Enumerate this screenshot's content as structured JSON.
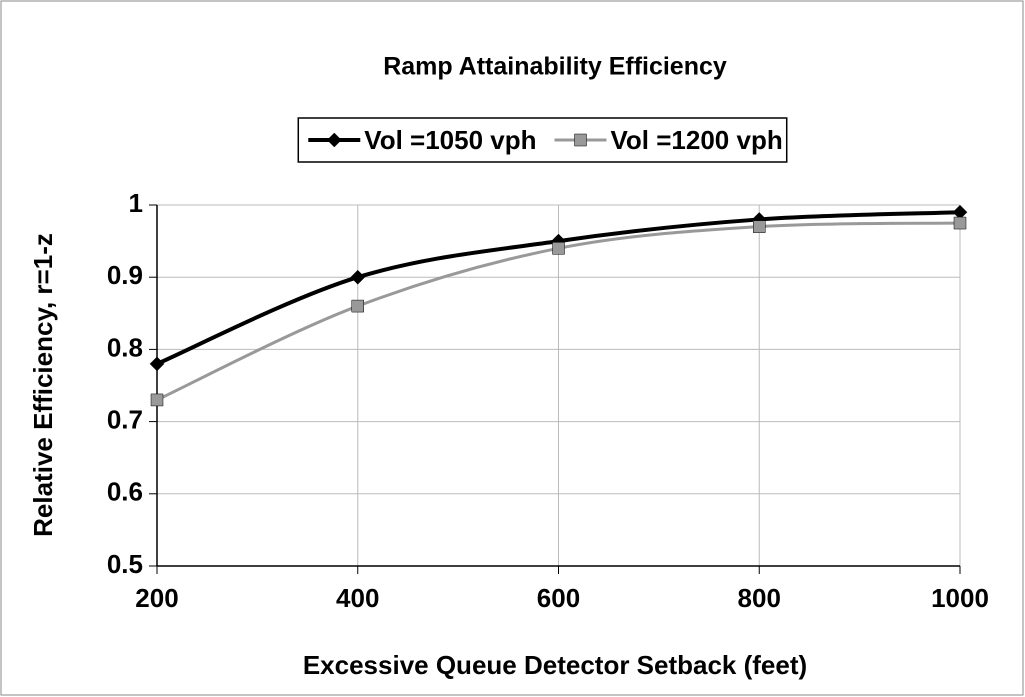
{
  "chart_data": {
    "type": "line",
    "title": "Ramp Attainability Efficiency",
    "x_label": "Excessive Queue Detector Setback (feet)",
    "y_label": "Relative Efficiency, r=1-z",
    "x": [
      200,
      400,
      600,
      800,
      1000
    ],
    "series": [
      {
        "name": "Vol =1050 vph",
        "color": "#000000",
        "marker": "diamond",
        "values": [
          0.78,
          0.9,
          0.95,
          0.98,
          0.99
        ]
      },
      {
        "name": "Vol =1200 vph",
        "color": "#999999",
        "marker": "square",
        "values": [
          0.73,
          0.86,
          0.94,
          0.97,
          0.975
        ]
      }
    ],
    "xlim": [
      200,
      1000
    ],
    "xticks": [
      200,
      400,
      600,
      800,
      1000
    ],
    "ylim": [
      0.5,
      1
    ],
    "yticks": [
      0.5,
      0.6,
      0.7,
      0.8,
      0.9,
      1
    ],
    "grid": true,
    "legend": "top"
  }
}
